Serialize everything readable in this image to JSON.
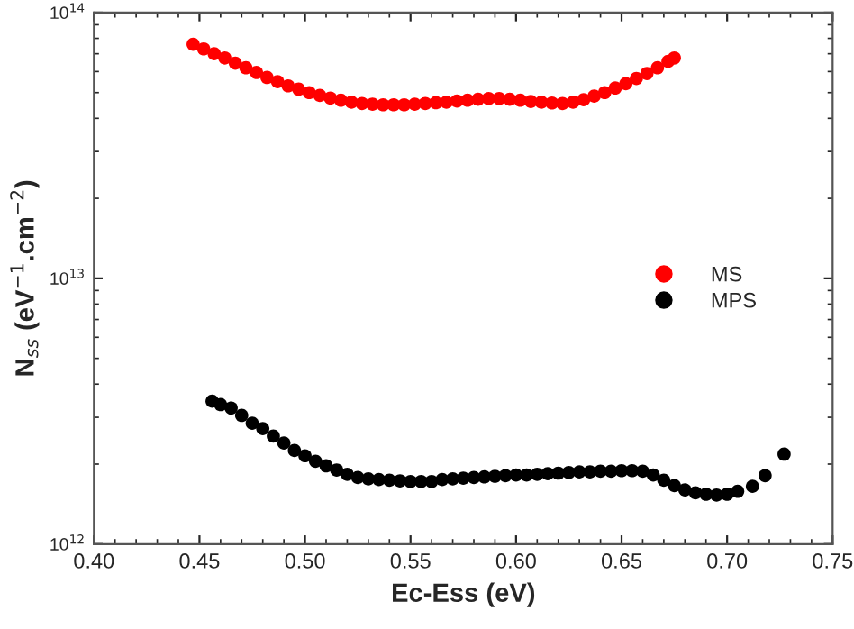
{
  "chart_data": {
    "type": "scatter",
    "xlabel": "Ec-Ess (eV)",
    "ylabel": "N$_{ss}$ (eV$^{−1}$.cm$^{−2}$)",
    "log": "y",
    "marker": "circle",
    "legend": "right",
    "grid": false,
    "xlim": [
      0.4,
      0.75
    ],
    "xticks": [
      {
        "value": 0.4,
        "label": "0.40"
      },
      {
        "value": 0.45,
        "label": "0.45"
      },
      {
        "value": 0.5,
        "label": "0.50"
      },
      {
        "value": 0.55,
        "label": "0.55"
      },
      {
        "value": 0.6,
        "label": "0.60"
      },
      {
        "value": 0.65,
        "label": "0.65"
      },
      {
        "value": 0.7,
        "label": "0.70"
      },
      {
        "value": 0.75,
        "label": "0.75"
      }
    ],
    "ylim": [
      1000000000000.0,
      100000000000000.0
    ],
    "yticks": [
      {
        "value": 1000000000000.0,
        "label": "10$^{12}$"
      },
      {
        "value": 10000000000000.0,
        "label": "10$^{13}$"
      },
      {
        "value": 100000000000000.0,
        "label": "10$^{14}$"
      }
    ],
    "series": [
      {
        "name": "MS",
        "color": "#ff0000",
        "x": [
          0.447,
          0.452,
          0.457,
          0.462,
          0.467,
          0.472,
          0.477,
          0.482,
          0.487,
          0.492,
          0.497,
          0.502,
          0.507,
          0.512,
          0.517,
          0.522,
          0.527,
          0.532,
          0.537,
          0.542,
          0.547,
          0.552,
          0.557,
          0.562,
          0.567,
          0.572,
          0.577,
          0.582,
          0.587,
          0.592,
          0.597,
          0.602,
          0.607,
          0.612,
          0.617,
          0.622,
          0.627,
          0.632,
          0.637,
          0.642,
          0.647,
          0.652,
          0.657,
          0.662,
          0.667,
          0.672,
          0.675
        ],
        "values": [
          76000000000000.0,
          73000000000000.0,
          70000000000000.0,
          67500000000000.0,
          64500000000000.0,
          62000000000000.0,
          59500000000000.0,
          57000000000000.0,
          55000000000000.0,
          53000000000000.0,
          51500000000000.0,
          50000000000000.0,
          48800000000000.0,
          47700000000000.0,
          46800000000000.0,
          46000000000000.0,
          45500000000000.0,
          45200000000000.0,
          45000000000000.0,
          45000000000000.0,
          45000000000000.0,
          45200000000000.0,
          45500000000000.0,
          45800000000000.0,
          46000000000000.0,
          46500000000000.0,
          46800000000000.0,
          47200000000000.0,
          47500000000000.0,
          47500000000000.0,
          47200000000000.0,
          46800000000000.0,
          46300000000000.0,
          46000000000000.0,
          45700000000000.0,
          45500000000000.0,
          46000000000000.0,
          47000000000000.0,
          48500000000000.0,
          50000000000000.0,
          52000000000000.0,
          54000000000000.0,
          56500000000000.0,
          59000000000000.0,
          62000000000000.0,
          65500000000000.0,
          67500000000000.0
        ]
      },
      {
        "name": "MPS",
        "color": "#000000",
        "x": [
          0.456,
          0.46,
          0.465,
          0.47,
          0.475,
          0.48,
          0.485,
          0.49,
          0.495,
          0.5,
          0.505,
          0.51,
          0.515,
          0.52,
          0.525,
          0.53,
          0.535,
          0.54,
          0.545,
          0.55,
          0.555,
          0.56,
          0.565,
          0.57,
          0.575,
          0.58,
          0.585,
          0.59,
          0.595,
          0.6,
          0.605,
          0.61,
          0.615,
          0.62,
          0.625,
          0.63,
          0.635,
          0.64,
          0.645,
          0.65,
          0.655,
          0.66,
          0.665,
          0.67,
          0.675,
          0.68,
          0.685,
          0.69,
          0.695,
          0.7,
          0.705,
          0.712,
          0.718,
          0.727
        ],
        "values": [
          3450000000000.0,
          3350000000000.0,
          3250000000000.0,
          3050000000000.0,
          2850000000000.0,
          2720000000000.0,
          2550000000000.0,
          2400000000000.0,
          2250000000000.0,
          2150000000000.0,
          2050000000000.0,
          1970000000000.0,
          1900000000000.0,
          1830000000000.0,
          1780000000000.0,
          1760000000000.0,
          1750000000000.0,
          1740000000000.0,
          1730000000000.0,
          1720000000000.0,
          1720000000000.0,
          1720000000000.0,
          1750000000000.0,
          1760000000000.0,
          1770000000000.0,
          1780000000000.0,
          1790000000000.0,
          1800000000000.0,
          1810000000000.0,
          1820000000000.0,
          1820000000000.0,
          1830000000000.0,
          1840000000000.0,
          1850000000000.0,
          1860000000000.0,
          1870000000000.0,
          1870000000000.0,
          1880000000000.0,
          1880000000000.0,
          1890000000000.0,
          1890000000000.0,
          1880000000000.0,
          1820000000000.0,
          1740000000000.0,
          1660000000000.0,
          1600000000000.0,
          1560000000000.0,
          1540000000000.0,
          1530000000000.0,
          1540000000000.0,
          1580000000000.0,
          1650000000000.0,
          1810000000000.0,
          2180000000000.0
        ]
      }
    ]
  }
}
